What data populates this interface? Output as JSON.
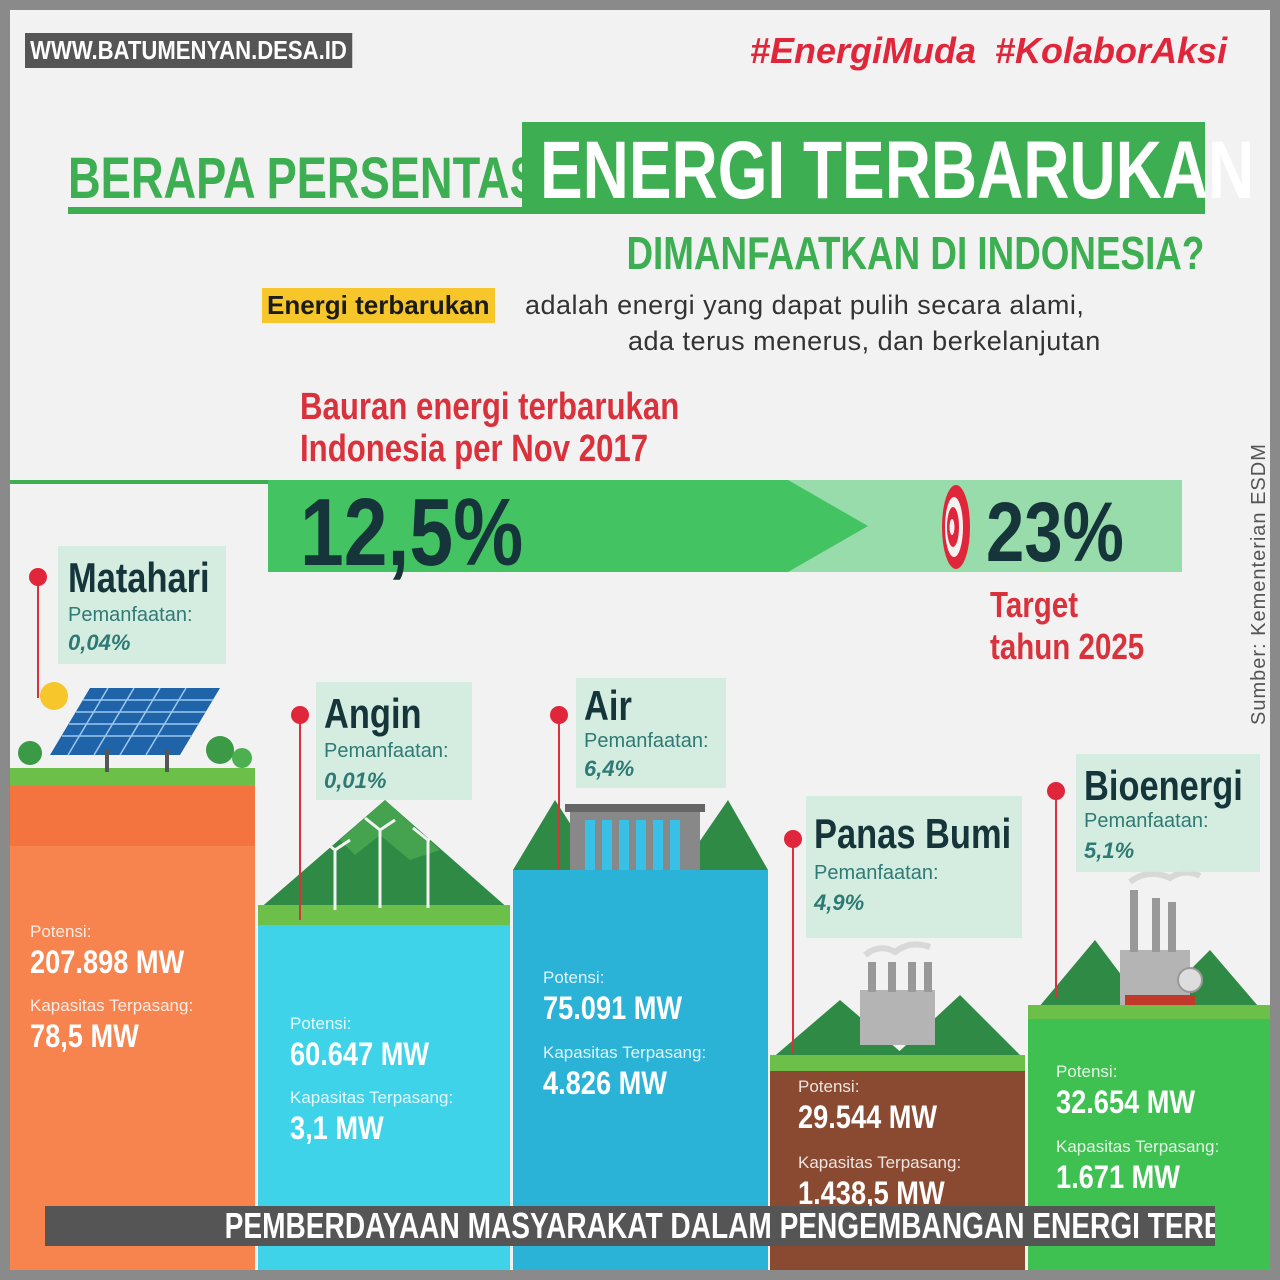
{
  "watermark": "WWW.BATUMENYAN.DESA.ID",
  "hashtags": [
    "#EnergiMuda",
    "#KolaborAksi"
  ],
  "title": {
    "line1": "BERAPA PERSENTASE",
    "highlight": "ENERGI TERBARUKAN",
    "line2": "DIMANFAATKAN DI INDONESIA?"
  },
  "definition": {
    "term": "Energi terbarukan",
    "text1": "adalah energi yang dapat pulih secara alami,",
    "text2": "ada terus menerus, dan berkelanjutan"
  },
  "mix": {
    "label_line1": "Bauran energi terbarukan",
    "label_line2": "Indonesia per Nov 2017",
    "current": "12,5%",
    "target": "23%",
    "target_label_line1": "Target",
    "target_label_line2": "tahun 2025"
  },
  "source": "Sumber: Kementerian ESDM",
  "labels": {
    "pemanfaatan": "Pemanfaatan:",
    "potensi": "Potensi:",
    "kapasitas": "Kapasitas Terpasang:"
  },
  "sources": [
    {
      "name": "Matahari",
      "utilization": "0,04%",
      "potential": "207.898 MW",
      "installed": "78,5 MW",
      "color": "#f7834f"
    },
    {
      "name": "Angin",
      "utilization": "0,01%",
      "potential": "60.647 MW",
      "installed": "3,1 MW",
      "color": "#3fd3ea"
    },
    {
      "name": "Air",
      "utilization": "6,4%",
      "potential": "75.091 MW",
      "installed": "4.826 MW",
      "color": "#2ab3d6"
    },
    {
      "name": "Panas Bumi",
      "utilization": "4,9%",
      "potential": "29.544 MW",
      "installed": "1.438,5 MW",
      "color": "#8a4a31"
    },
    {
      "name": "Bioenergi",
      "utilization": "5,1%",
      "potential": "32.654 MW",
      "installed": "1.671 MW",
      "color": "#3fc152"
    }
  ],
  "caption": "PEMBERDAYAAN MASYARAKAT DALAM PENGEMBANGAN ENERGI TERBARUKAN OLEH BPD",
  "colors": {
    "green": "#3daf52",
    "red": "#e0263a",
    "dark": "#15353a"
  }
}
